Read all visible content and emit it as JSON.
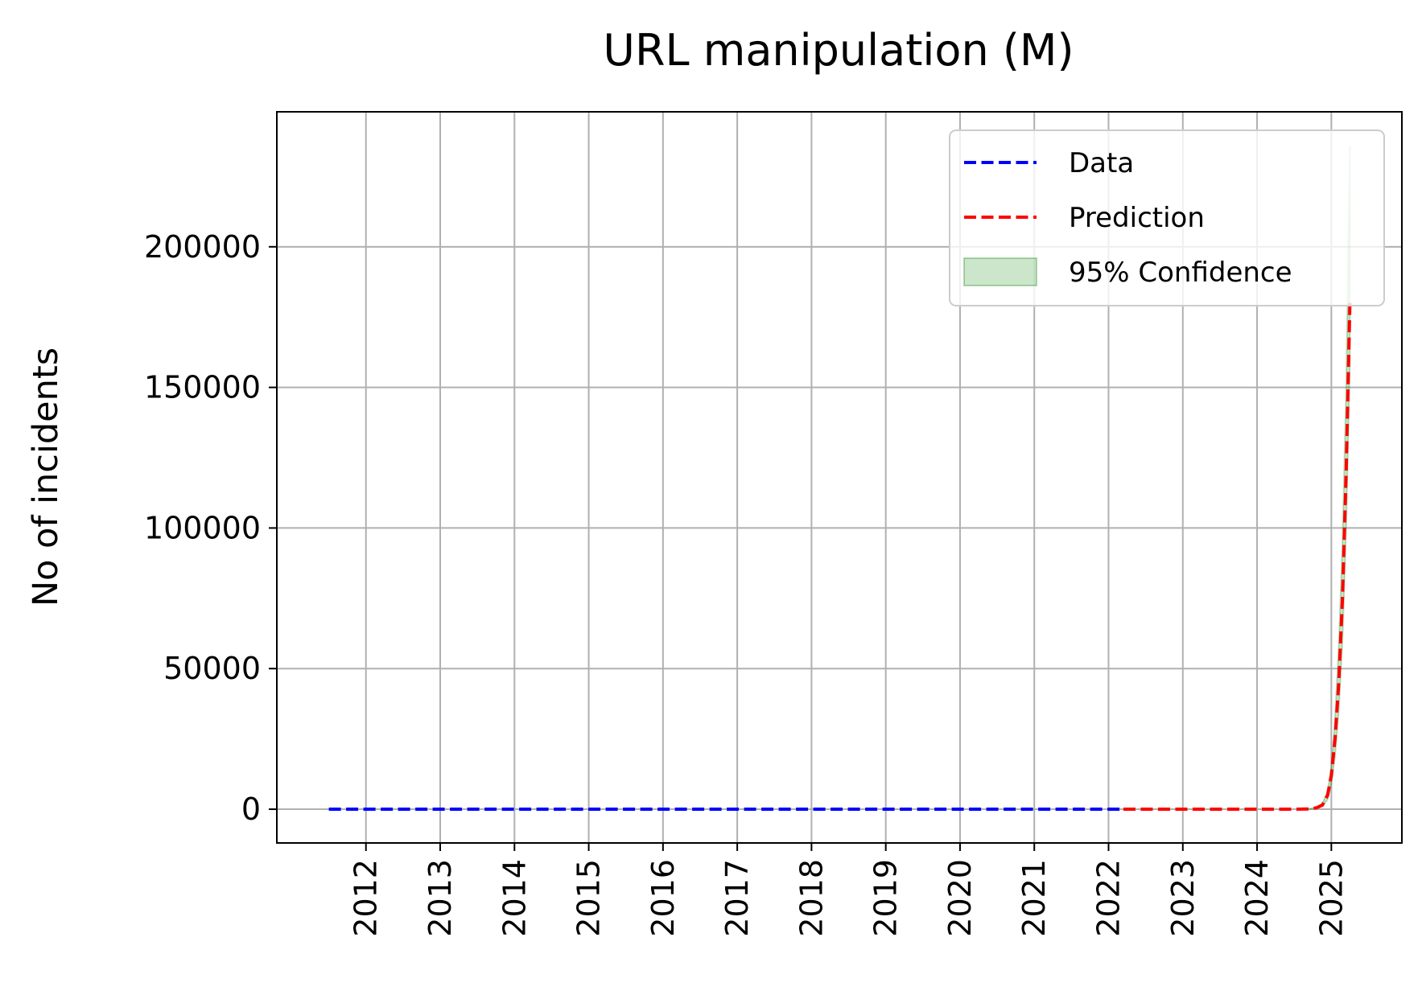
{
  "chart_data": {
    "type": "line",
    "title": "URL manipulation (M)",
    "xlabel": "",
    "ylabel": "No of incidents",
    "xlim": [
      2010.8,
      2025.95
    ],
    "ylim": [
      -12000,
      248000
    ],
    "grid": true,
    "legend_placement": "top-right",
    "x_ticks": [
      2012,
      2013,
      2014,
      2015,
      2016,
      2017,
      2018,
      2019,
      2020,
      2021,
      2022,
      2023,
      2024,
      2025
    ],
    "x_tick_labels": [
      "2012",
      "2013",
      "2014",
      "2015",
      "2016",
      "2017",
      "2018",
      "2019",
      "2020",
      "2021",
      "2022",
      "2023",
      "2024",
      "2025"
    ],
    "y_ticks": [
      0,
      50000,
      100000,
      150000,
      200000
    ],
    "y_tick_labels": [
      "0",
      "50000",
      "100000",
      "150000",
      "200000"
    ],
    "series": [
      {
        "name": "Data",
        "color": "#0000ff",
        "style": "dashed",
        "x": [
          2011.5,
          2012,
          2013,
          2014,
          2015,
          2016,
          2017,
          2018,
          2019,
          2020,
          2021,
          2022,
          2022.2
        ],
        "y": [
          0,
          0,
          0,
          0,
          0,
          0,
          0,
          0,
          0,
          0,
          0,
          0,
          0
        ]
      },
      {
        "name": "Prediction",
        "color": "#ff0000",
        "style": "dashed",
        "x": [
          2022.2,
          2023,
          2024,
          2024.5,
          2024.7,
          2024.8,
          2024.88,
          2024.95,
          2025.0,
          2025.05,
          2025.1,
          2025.15,
          2025.2,
          2025.25
        ],
        "y": [
          0,
          0,
          0,
          0,
          100,
          500,
          1500,
          5000,
          12000,
          25000,
          45000,
          75000,
          120000,
          180000
        ]
      }
    ],
    "confidence_band": {
      "name": "95% Confidence",
      "color": "#008000",
      "opacity": 0.2,
      "x": [
        2024.7,
        2024.8,
        2024.88,
        2024.95,
        2025.0,
        2025.05,
        2025.1,
        2025.15,
        2025.2,
        2025.25
      ],
      "lower": [
        50,
        300,
        1000,
        3500,
        9000,
        19000,
        35000,
        60000,
        100000,
        160000
      ],
      "upper": [
        150,
        700,
        2000,
        6500,
        15000,
        32000,
        58000,
        95000,
        150000,
        236000
      ]
    }
  }
}
